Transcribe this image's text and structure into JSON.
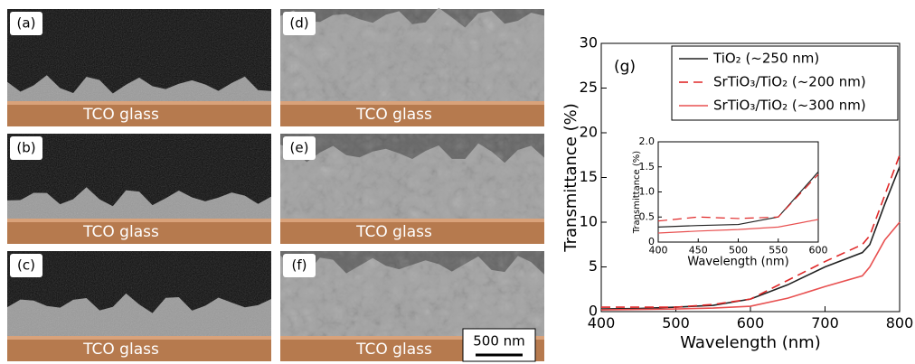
{
  "panels": [
    {
      "label": "(a)",
      "substrate": "TCO glass"
    },
    {
      "label": "(b)",
      "substrate": "TCO glass"
    },
    {
      "label": "(c)",
      "substrate": "TCO glass"
    },
    {
      "label": "(d)",
      "substrate": "TCO glass"
    },
    {
      "label": "(e)",
      "substrate": "TCO glass"
    },
    {
      "label": "(f)",
      "substrate": "TCO glass"
    }
  ],
  "scale_bar": "500 nm",
  "chart_data": [
    {
      "type": "line",
      "annotation": "(g)",
      "x_label": "Wavelength (nm)",
      "y_label": "Transmittance (%)",
      "x": [
        400,
        450,
        500,
        550,
        600,
        650,
        700,
        750,
        760,
        780,
        800
      ],
      "series": [
        {
          "name": "TiO₂ (~250 nm)",
          "color": "#222222",
          "linestyle": "solid",
          "values": [
            0.3,
            0.35,
            0.5,
            0.7,
            1.4,
            3,
            5,
            6.6,
            7.5,
            12,
            16.2
          ]
        },
        {
          "name": "SrTiO₃/TiO₂ (~200 nm)",
          "color": "#e02828",
          "linestyle": "dashed",
          "values": [
            0.5,
            0.5,
            0.5,
            0.8,
            1.4,
            3.5,
            5.6,
            7.5,
            8.5,
            13,
            17.5
          ]
        },
        {
          "name": "SrTiO₃/TiO₂ (~300 nm)",
          "color": "#e85050",
          "linestyle": "solid",
          "values": [
            0.2,
            0.25,
            0.3,
            0.4,
            0.6,
            1.5,
            2.8,
            4,
            5,
            8,
            10
          ]
        }
      ],
      "xlim": [
        400,
        800
      ],
      "xticks": [
        400,
        500,
        600,
        700,
        800
      ],
      "ylim": [
        0,
        30
      ],
      "yticks": [
        0,
        5,
        10,
        15,
        20,
        25,
        30
      ],
      "legend": "upper right"
    },
    {
      "type": "line",
      "x_label": "Wavelength (nm)",
      "y_label": "Transmittance (%)",
      "x": [
        400,
        450,
        500,
        550,
        600
      ],
      "series": [
        {
          "color": "#222222",
          "linestyle": "solid",
          "values": [
            0.3,
            0.33,
            0.35,
            0.5,
            1.4
          ]
        },
        {
          "color": "#e02828",
          "linestyle": "dashed",
          "values": [
            0.42,
            0.5,
            0.47,
            0.5,
            1.35
          ]
        },
        {
          "color": "#e85050",
          "linestyle": "solid",
          "values": [
            0.18,
            0.22,
            0.25,
            0.3,
            0.45
          ]
        }
      ],
      "xlim": [
        400,
        600
      ],
      "xticks": [
        400,
        450,
        500,
        550,
        600
      ],
      "ylim": [
        0,
        2
      ],
      "yticks": [
        0,
        0.5,
        {
          "value": 1,
          "label": "1.0"
        },
        1.5,
        {
          "value": 2,
          "label": "2.0"
        }
      ]
    }
  ]
}
